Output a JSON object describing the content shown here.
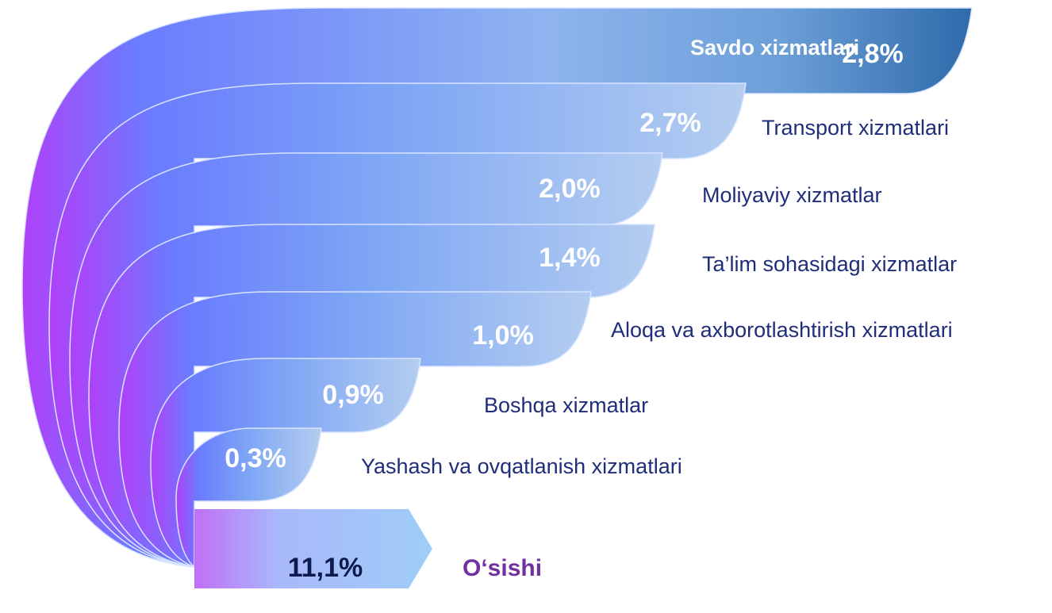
{
  "chart_data": {
    "type": "arc-funnel",
    "categories": [
      "Savdo xizmatlari",
      "Transport xizmatlari",
      "Moliyaviy xizmatlar",
      "Ta’lim sohasidagi xizmatlar",
      "Aloqa va axborotlashtirish xizmatlari",
      "Boshqa xizmatlar",
      "Yashash va ovqatlanish xizmatlari"
    ],
    "values": [
      2.8,
      2.7,
      2.0,
      1.4,
      1.0,
      0.9,
      0.3
    ],
    "value_labels": [
      "2,8%",
      "2,7%",
      "2,0%",
      "1,4%",
      "1,0%",
      "0,9%",
      "0,3%"
    ],
    "total": {
      "label": "O‘sishi",
      "value": 11.1,
      "value_label": "11,1%"
    }
  }
}
